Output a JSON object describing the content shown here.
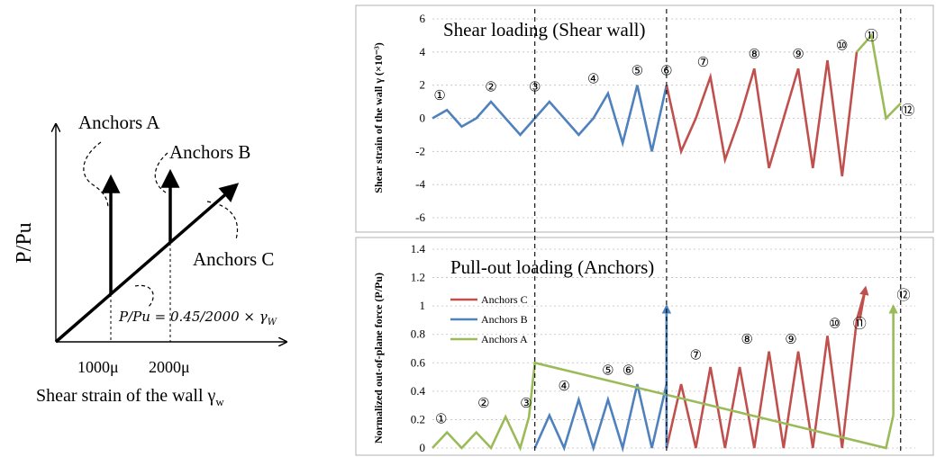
{
  "concept": {
    "y_label": "P/Pu",
    "x_label": "Shear strain of the wall  γ",
    "x_label_sub": "w",
    "tick_labels": [
      "1000μ",
      "2000μ"
    ],
    "anchor_labels": [
      "Anchors A",
      "Anchors B",
      "Anchors C"
    ],
    "equation": "P/Pu = 0.45/2000 × γ",
    "equation_sub": "W"
  },
  "chart_data": [
    {
      "type": "line",
      "title": "Shear loading (Shear wall)",
      "ylabel": "Shear strain of the wall γ (×10⁻³)",
      "ylim": [
        -6,
        6
      ],
      "ytick_labels": [
        "6",
        "4",
        "2",
        "0",
        "-2",
        "-4",
        "-6"
      ],
      "ytick_values": [
        6,
        4,
        2,
        0,
        -2,
        -4,
        -6
      ],
      "grid": true,
      "series": [
        {
          "color": "#4f81bd",
          "x": [
            0,
            1,
            2,
            3,
            4,
            5,
            6,
            7,
            8,
            9,
            10,
            11,
            12,
            13,
            14,
            15,
            16
          ],
          "values": [
            0,
            0.5,
            -0.5,
            0,
            1,
            0,
            -1,
            0,
            1,
            0,
            -1,
            0,
            1.5,
            -1.5,
            2,
            -2,
            2
          ]
        },
        {
          "color": "#c0504d",
          "x": [
            16,
            17,
            18,
            19,
            20,
            21,
            22,
            23,
            24,
            25,
            26,
            27,
            28,
            29
          ],
          "values": [
            2,
            -2,
            0,
            2.5,
            -2.5,
            0,
            3,
            -3,
            0,
            3,
            -3,
            3.5,
            -3.5,
            4
          ]
        },
        {
          "color": "#9bbb59",
          "x": [
            29,
            30,
            31,
            32
          ],
          "values": [
            4,
            5,
            0,
            0.9
          ]
        }
      ],
      "stage_labels": [
        "①",
        "②",
        "③",
        "④",
        "⑤",
        "⑥",
        "⑦",
        "⑧",
        "⑨",
        "⑩",
        "⑪",
        "⑫"
      ],
      "stage_x": [
        0.5,
        4,
        7,
        11,
        14,
        16,
        18.5,
        22,
        25,
        28,
        30,
        32.5
      ],
      "stage_y": [
        0.9,
        1.4,
        1.4,
        1.9,
        2.4,
        2.4,
        2.9,
        3.4,
        3.4,
        3.9,
        4.5,
        0
      ]
    },
    {
      "type": "line",
      "title": "Pull-out loading (Anchors)",
      "ylabel": "Normalized out-of-plane force (P/Pu)",
      "ylim": [
        0,
        1.4
      ],
      "ytick_labels": [
        "1.4",
        "1.2",
        "1",
        "0.8",
        "0.6",
        "0.4",
        "0.2",
        "0"
      ],
      "ytick_values": [
        1.4,
        1.2,
        1,
        0.8,
        0.6,
        0.4,
        0.2,
        0
      ],
      "grid": true,
      "legend": {
        "placement": "left",
        "entries": [
          "Anchors C",
          "Anchors B",
          "Anchors A"
        ]
      },
      "series": [
        {
          "name": "Anchors C",
          "color": "#c0504d",
          "x": [
            16,
            17,
            18,
            19,
            20,
            21,
            22,
            23,
            24,
            25,
            26,
            27,
            28,
            29,
            29.6
          ],
          "values": [
            0,
            0.45,
            0,
            0.57,
            0,
            0.57,
            0,
            0.68,
            0,
            0.68,
            0,
            0.79,
            0,
            0.9,
            1.12
          ]
        },
        {
          "name": "Anchors B",
          "color": "#4f81bd",
          "x": [
            7,
            8,
            9,
            10,
            11,
            12,
            13,
            14,
            15,
            16
          ],
          "values": [
            0,
            0.23,
            0,
            0.34,
            0,
            0.34,
            0,
            0.45,
            0,
            0.45
          ]
        },
        {
          "name": "Anchors A",
          "color": "#9bbb59",
          "x": [
            0,
            1,
            2,
            3,
            4,
            5,
            6,
            6.6,
            7,
            31,
            31.5
          ],
          "values": [
            0,
            0.11,
            0,
            0.11,
            0,
            0.22,
            0,
            0.22,
            0.6,
            0,
            0.23
          ]
        }
      ],
      "stage_labels": [
        "①",
        "②",
        "③",
        "④",
        "⑤",
        "⑥",
        "⑦",
        "⑧",
        "⑨",
        "⑩",
        "⑪",
        "⑫"
      ],
      "stage_x": [
        0.6,
        3.5,
        6.4,
        9,
        12,
        13.4,
        18,
        21.5,
        24.5,
        27.5,
        29.2,
        32.2
      ],
      "stage_y": [
        0.15,
        0.26,
        0.26,
        0.38,
        0.49,
        0.49,
        0.6,
        0.71,
        0.71,
        0.82,
        0.82,
        1.02
      ]
    }
  ]
}
